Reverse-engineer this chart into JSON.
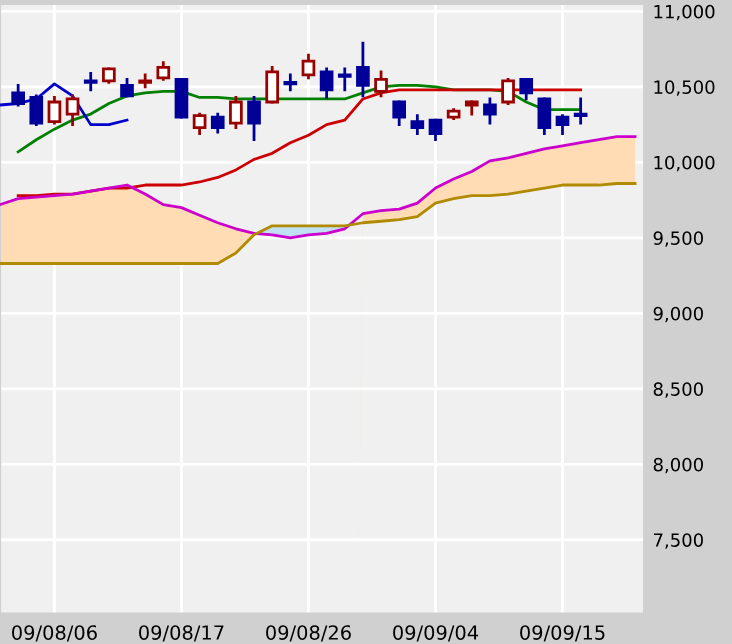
{
  "chart_data": {
    "type": "candlestick",
    "categories": [
      null,
      null,
      null,
      "09/08/06",
      null,
      null,
      null,
      null,
      null,
      null,
      "09/08/17",
      null,
      null,
      null,
      null,
      null,
      null,
      "09/08/26",
      null,
      null,
      null,
      null,
      null,
      null,
      "09/09/04",
      null,
      null,
      null,
      null,
      null,
      null,
      "09/09/15",
      null,
      null,
      null,
      null
    ],
    "ohlc": [
      null,
      [
        10460,
        10510,
        10380,
        10390
      ],
      [
        10430,
        10440,
        10250,
        10260
      ],
      [
        10270,
        10430,
        10260,
        10400
      ],
      [
        10320,
        10440,
        10250,
        10420
      ],
      [
        10540,
        10590,
        10480,
        10530
      ],
      [
        10540,
        10620,
        10530,
        10620
      ],
      [
        10510,
        10550,
        10440,
        10440
      ],
      [
        10530,
        10580,
        10500,
        10540
      ],
      [
        10560,
        10660,
        10550,
        10630
      ],
      [
        10550,
        10550,
        10300,
        10300
      ],
      [
        10230,
        10320,
        10190,
        10310
      ],
      [
        10300,
        10320,
        10200,
        10230
      ],
      [
        10260,
        10430,
        10230,
        10400
      ],
      [
        10400,
        10430,
        10150,
        10260
      ],
      [
        10400,
        10630,
        10400,
        10600
      ],
      [
        10530,
        10580,
        10480,
        10520
      ],
      [
        10580,
        10710,
        10560,
        10670
      ],
      [
        10600,
        10620,
        10430,
        10480
      ],
      [
        10580,
        10620,
        10480,
        10570
      ],
      [
        10630,
        10790,
        10440,
        10510
      ],
      [
        10470,
        10600,
        10440,
        10550
      ],
      [
        10400,
        10400,
        10250,
        10300
      ],
      [
        10270,
        10310,
        10190,
        10230
      ],
      [
        10280,
        10280,
        10150,
        10190
      ],
      [
        10300,
        10350,
        10290,
        10340
      ],
      [
        10380,
        10400,
        10320,
        10400
      ],
      [
        10380,
        10420,
        10260,
        10320
      ],
      [
        10400,
        10550,
        10390,
        10540
      ],
      [
        10550,
        10550,
        10420,
        10460
      ],
      [
        10420,
        10420,
        10190,
        10230
      ],
      [
        10300,
        10310,
        10190,
        10250
      ],
      [
        10320,
        10420,
        10260,
        10310
      ],
      null,
      null,
      null
    ],
    "series": [
      {
        "type": "line",
        "color": "#008000",
        "values": [
          null,
          10070,
          10150,
          10220,
          10280,
          10320,
          10390,
          10440,
          10460,
          10470,
          10470,
          10430,
          10430,
          10420,
          10420,
          10420,
          10420,
          10420,
          10420,
          10420,
          10460,
          10500,
          10510,
          10510,
          10500,
          10480,
          10480,
          10480,
          10470,
          10400,
          10350,
          10350,
          10350,
          null,
          null,
          null
        ]
      },
      {
        "type": "line",
        "color": "#cc0000",
        "values": [
          null,
          9780,
          9780,
          9790,
          9790,
          9810,
          9830,
          9830,
          9850,
          9850,
          9850,
          9870,
          9900,
          9950,
          10020,
          10060,
          10130,
          10180,
          10250,
          10280,
          10420,
          10460,
          10480,
          10480,
          10480,
          10480,
          10480,
          10480,
          10480,
          10480,
          10480,
          10480,
          10480,
          null,
          null,
          null
        ]
      },
      {
        "type": "line",
        "color": "#0000cc",
        "values": [
          10380,
          10390,
          10420,
          10520,
          10440,
          10250,
          10250,
          10280,
          null,
          null,
          null,
          null,
          null,
          null,
          null,
          null,
          null,
          null,
          null,
          null,
          null,
          null,
          null,
          null,
          null,
          null,
          null,
          null,
          null,
          null,
          null,
          null,
          null,
          null,
          null,
          null
        ]
      },
      {
        "type": "line",
        "color": "#cc00cc",
        "values": [
          9720,
          9760,
          9770,
          9780,
          9790,
          9810,
          9830,
          9850,
          9790,
          9720,
          9700,
          9650,
          9600,
          9560,
          9530,
          9520,
          9500,
          9520,
          9530,
          9560,
          9660,
          9680,
          9690,
          9730,
          9830,
          9890,
          9940,
          10010,
          10030,
          10060,
          10090,
          10110,
          10130,
          10150,
          10170,
          10170
        ],
        "upper": [
          9720,
          9760,
          9770,
          9780,
          9790,
          9810,
          9830,
          9850,
          9790,
          9720,
          9700,
          9650,
          9600,
          9560,
          9530,
          null,
          null,
          null,
          null,
          null,
          9660,
          9680,
          9690,
          9730,
          9830,
          9890,
          9940,
          10010,
          10030,
          10060,
          10090,
          10110,
          10130,
          10150,
          10170,
          10170
        ],
        "lower": [
          9330,
          9330,
          9330,
          9330,
          9330,
          9330,
          9330,
          9330,
          9330,
          9330,
          9330,
          9330,
          9330,
          9400,
          9520,
          null,
          null,
          null,
          null,
          null,
          9600,
          9610,
          9620,
          9640,
          9730,
          9760,
          9780,
          9780,
          9790,
          9810,
          9830,
          9850,
          9850,
          9850,
          9860,
          9860
        ]
      },
      {
        "type": "line",
        "color": "#b08a00",
        "values": [
          9330,
          9330,
          9330,
          9330,
          9330,
          9330,
          9330,
          9330,
          9330,
          9330,
          9330,
          9330,
          9330,
          9400,
          9520,
          9580,
          9580,
          9580,
          9580,
          9580,
          9600,
          9610,
          9620,
          9640,
          9730,
          9760,
          9780,
          9780,
          9790,
          9810,
          9830,
          9850,
          9850,
          9850,
          9860,
          9860
        ],
        "upper": [
          null,
          null,
          null,
          null,
          null,
          null,
          null,
          null,
          null,
          null,
          null,
          null,
          null,
          null,
          9520,
          9580,
          9580,
          9580,
          9580,
          9580,
          null,
          null,
          null,
          null,
          null,
          null,
          null,
          null,
          null,
          null,
          null,
          null,
          null,
          null,
          null,
          null
        ],
        "lower": [
          null,
          null,
          null,
          null,
          null,
          null,
          null,
          null,
          null,
          null,
          null,
          null,
          null,
          null,
          9530,
          9520,
          9500,
          9520,
          9530,
          9560,
          null,
          null,
          null,
          null,
          null,
          null,
          null,
          null,
          null,
          null,
          null,
          null,
          null,
          null,
          null,
          null
        ]
      }
    ],
    "ylim": [
      7010,
      11050
    ],
    "yticks": [
      {
        "value": 7500,
        "label": "7,500"
      },
      {
        "value": 8000,
        "label": "8,000"
      },
      {
        "value": 8500,
        "label": "8,500"
      },
      {
        "value": 9000,
        "label": "9,000"
      },
      {
        "value": 9500,
        "label": "9,500"
      },
      {
        "value": 10000,
        "label": "10,000"
      },
      {
        "value": 10500,
        "label": "10,500"
      },
      {
        "value": 11000,
        "label": "11,000"
      }
    ],
    "grid": true
  }
}
